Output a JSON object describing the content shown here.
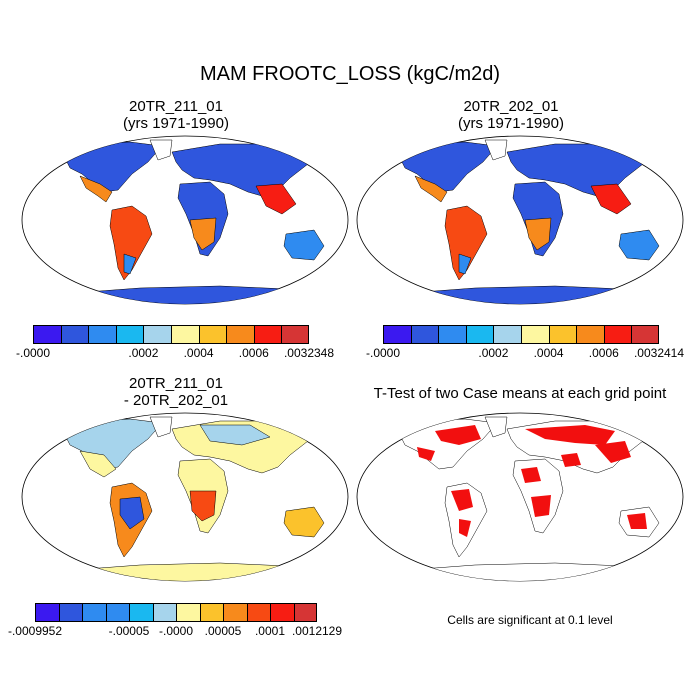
{
  "title": "MAM FROOTC_LOSS (kgC/m2d)",
  "panels": [
    {
      "title1": "20TR_211_01",
      "title2": "(yrs 1971-1990)"
    },
    {
      "title1": "20TR_202_01",
      "title2": "(yrs 1971-1990)"
    },
    {
      "title1": "20TR_211_01",
      "title2": "- 20TR_202_01"
    },
    {
      "title1": "T-Test of two Case means at each grid point",
      "title2": ""
    }
  ],
  "colorbars": [
    {
      "colors": [
        "#3b19f0",
        "#2f56dd",
        "#2f8bf0",
        "#1ab8f0",
        "#a6d4ec",
        "#fdf7a0",
        "#fbc22c",
        "#f78a1c",
        "#f71d13",
        "#d63535"
      ],
      "labels": [
        "-.0000",
        ".0002",
        ".0004",
        ".0006",
        ".0032348"
      ]
    },
    {
      "colors": [
        "#3b19f0",
        "#2f56dd",
        "#2f8bf0",
        "#1ab8f0",
        "#a6d4ec",
        "#fdf7a0",
        "#fbc22c",
        "#f78a1c",
        "#f71d13",
        "#d63535"
      ],
      "labels": [
        "-.0000",
        ".0002",
        ".0004",
        ".0006",
        ".0032414"
      ]
    },
    {
      "colors": [
        "#3b19f0",
        "#2f56dd",
        "#2f8bf0",
        "#2f8bf0",
        "#1ab8f0",
        "#a6d4ec",
        "#fdf7a0",
        "#fbc22c",
        "#f78a1c",
        "#f74a13",
        "#f71d13",
        "#d63535"
      ],
      "labels": [
        "-.0009952",
        "-.00005",
        "-.0000",
        ".00005",
        ".0001",
        ".0012129"
      ]
    }
  ],
  "significance_note": "Cells are significant at 0.1 level"
}
